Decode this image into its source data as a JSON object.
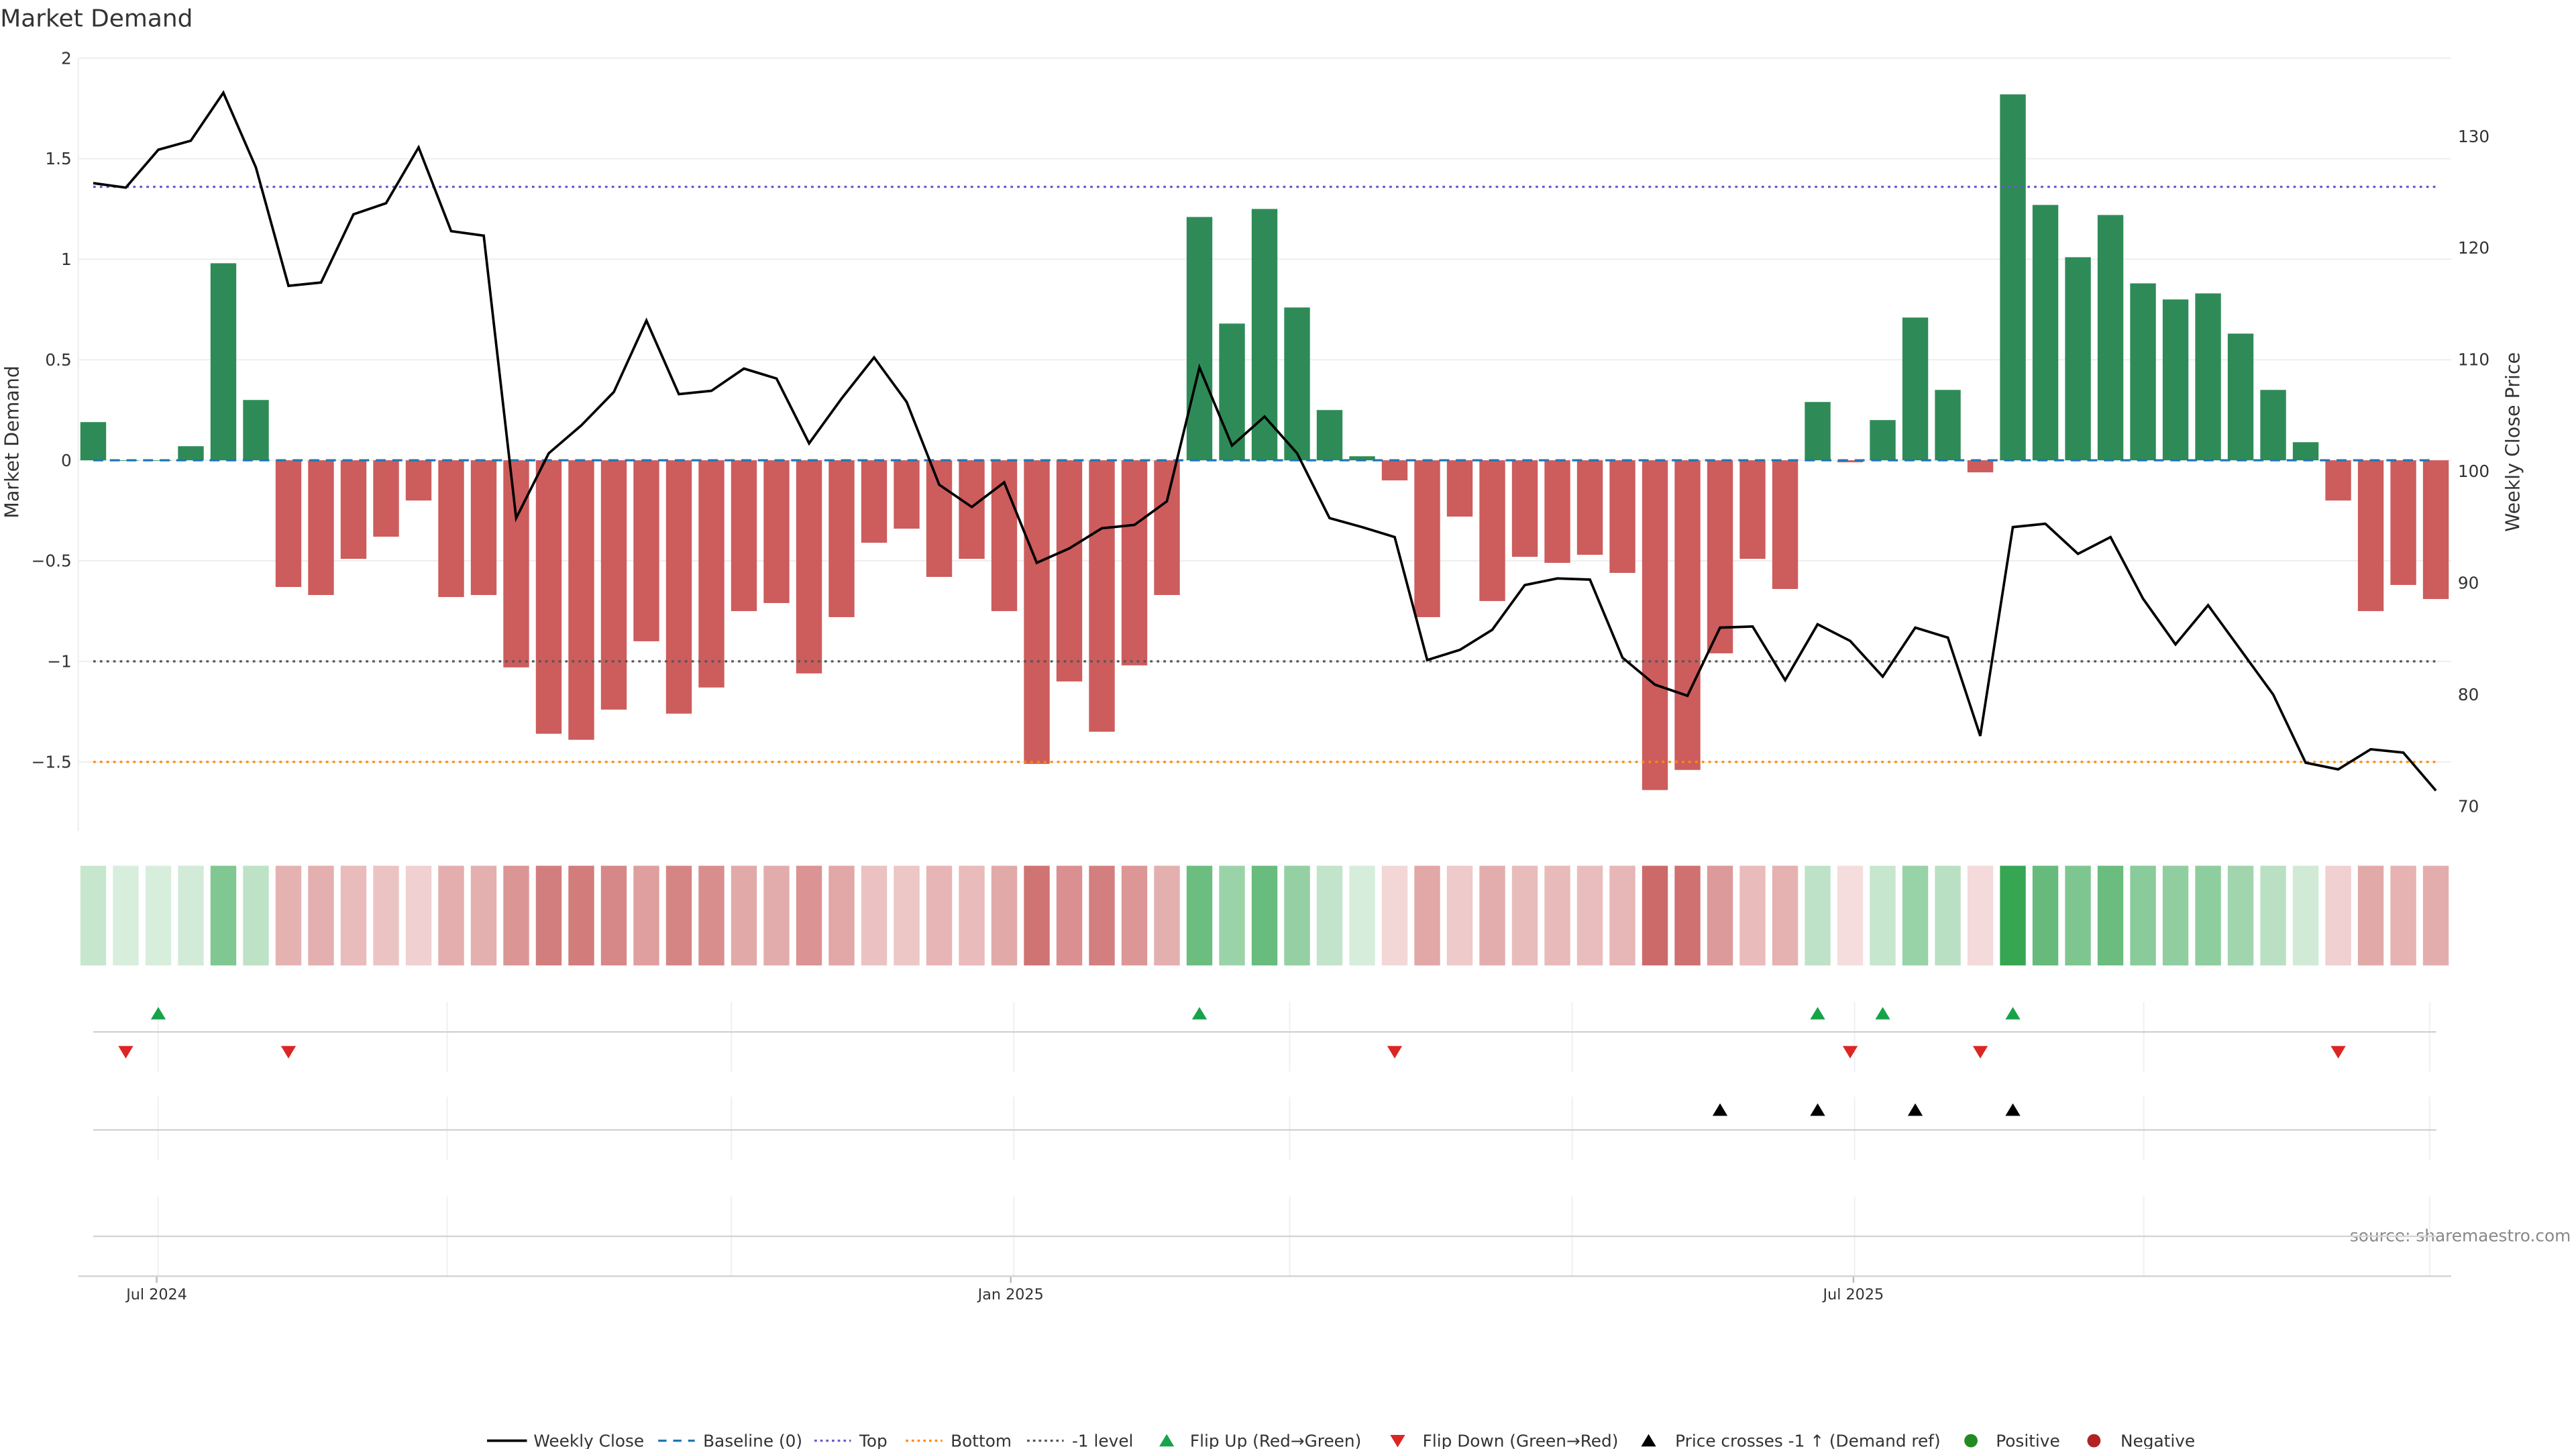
{
  "chart_data": {
    "type": "bar",
    "title": "Market Demand",
    "ylabel": "Market Demand",
    "y2label": "Weekly Close Price",
    "ylim": [
      -1.8,
      2
    ],
    "y2lim": [
      68.5,
      138.6
    ],
    "yticks": [
      "2",
      "1.5",
      "1",
      "0.5",
      "0",
      "−0.5",
      "−1",
      "−1.5"
    ],
    "ytick_values": [
      2,
      1.5,
      1,
      0.5,
      0,
      -0.5,
      -1,
      -1.5
    ],
    "y2ticks": [
      "130",
      "120",
      "110",
      "100",
      "90",
      "80",
      "70"
    ],
    "y2tick_values": [
      130,
      120,
      110,
      100,
      90,
      80,
      70
    ],
    "xticks": [
      {
        "label": "Jul 2024",
        "index": 1.95
      },
      {
        "label": "Jan 2025",
        "index": 28.2
      },
      {
        "label": "Jul 2025",
        "index": 54.1
      }
    ],
    "levels": {
      "baseline": 0,
      "top": 1.36,
      "bottom": -1.5,
      "minus_one": -1
    },
    "demand": [
      0.19,
      0.0,
      0.0,
      0.07,
      0.98,
      0.3,
      -0.63,
      -0.67,
      -0.49,
      -0.38,
      -0.2,
      -0.68,
      -0.67,
      -1.03,
      -1.36,
      -1.39,
      -1.24,
      -0.9,
      -1.26,
      -1.13,
      -0.75,
      -0.71,
      -1.06,
      -0.78,
      -0.41,
      -0.34,
      -0.58,
      -0.49,
      -0.75,
      -1.51,
      -1.1,
      -1.35,
      -1.02,
      -0.67,
      1.21,
      0.68,
      1.25,
      0.76,
      0.25,
      0.02,
      -0.1,
      -0.78,
      -0.28,
      -0.7,
      -0.48,
      -0.51,
      -0.47,
      -0.56,
      -1.64,
      -1.54,
      -0.96,
      -0.49,
      -0.64,
      0.29,
      -0.01,
      0.2,
      0.71,
      0.35,
      -0.06,
      1.82,
      1.27,
      1.01,
      1.22,
      0.88,
      0.8,
      0.83,
      0.63,
      0.35,
      0.09,
      -0.2,
      -0.75,
      -0.62,
      -0.69
    ],
    "weekly_close": [
      125.8,
      125.4,
      128.8,
      129.6,
      133.9,
      127.2,
      116.6,
      116.9,
      123.0,
      124.0,
      129.0,
      121.5,
      121.1,
      95.8,
      101.6,
      104.1,
      107.1,
      113.5,
      106.9,
      107.2,
      109.2,
      108.3,
      102.5,
      106.5,
      110.2,
      106.2,
      98.8,
      96.8,
      99.0,
      91.8,
      93.1,
      94.9,
      95.2,
      97.3,
      109.3,
      102.3,
      104.9,
      101.6,
      95.8,
      95.0,
      94.1,
      83.1,
      84.0,
      85.8,
      89.8,
      90.4,
      90.3,
      83.3,
      80.9,
      79.9,
      86.0,
      86.1,
      81.3,
      86.3,
      84.8,
      81.6,
      86.0,
      85.1,
      76.3,
      95.0,
      95.3,
      92.6,
      94.1,
      88.6,
      84.5,
      88.0,
      84.0,
      80.0,
      73.9,
      73.3,
      75.1,
      74.8,
      71.4
    ],
    "flip_up": [
      2,
      34,
      53,
      55,
      59
    ],
    "flip_down": [
      1,
      6,
      40,
      54,
      58,
      69
    ],
    "price_crosses": [
      50,
      53,
      56,
      59
    ],
    "legend": [
      "Weekly Close",
      "Baseline (0)",
      "Top",
      "Bottom",
      "-1 level",
      "Flip Up (Red→Green)",
      "Flip Down (Green→Red)",
      "Price crosses -1 ↑ (Demand ref)",
      "Positive",
      "Negative"
    ],
    "colors": {
      "positive_bar": "#2e8b57",
      "negative_bar": "#cd5c5c",
      "close": "#000000",
      "baseline": "#1f77b4",
      "top": "#6a5acd",
      "bottom": "#ff8c00",
      "minus_one": "#555555",
      "flip_up": "#16a34a",
      "flip_down": "#dc2626",
      "positive": "#228b22",
      "negative": "#b22222"
    },
    "source": "source: sharemaestro.com",
    "legend_placement": "bottom"
  }
}
